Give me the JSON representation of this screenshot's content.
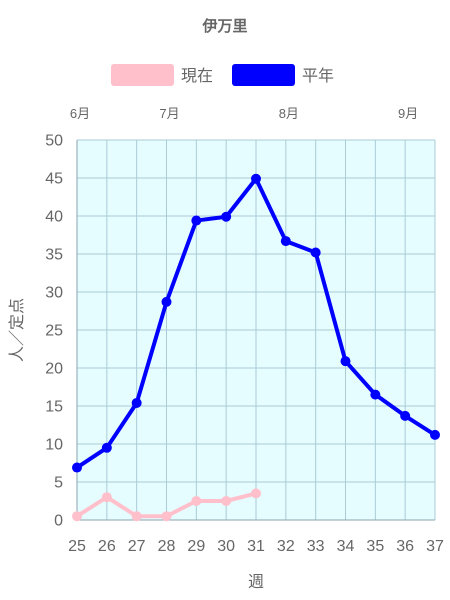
{
  "chart_data": {
    "type": "line",
    "title": "伊万里",
    "xlabel": "週",
    "ylabel": "人／定点",
    "x": [
      25,
      26,
      27,
      28,
      29,
      30,
      31,
      32,
      33,
      34,
      35,
      36,
      37
    ],
    "ylim": [
      0,
      50
    ],
    "yticks": [
      0,
      5,
      10,
      15,
      20,
      25,
      30,
      35,
      40,
      45,
      50
    ],
    "grid": true,
    "legend_position": "top",
    "plot_background": "#e6fdff",
    "month_labels": [
      {
        "label": "6月",
        "week": 25
      },
      {
        "label": "7月",
        "week": 28
      },
      {
        "label": "8月",
        "week": 32
      },
      {
        "label": "9月",
        "week": 36
      }
    ],
    "series": [
      {
        "name": "現在",
        "color": "#ffc0cb",
        "values": [
          0.5,
          3.0,
          0.5,
          0.5,
          2.5,
          2.5,
          3.5,
          null,
          null,
          null,
          null,
          null,
          null
        ]
      },
      {
        "name": "平年",
        "color": "#0000ff",
        "values": [
          6.9,
          9.5,
          15.4,
          28.7,
          39.4,
          39.9,
          44.9,
          36.7,
          35.2,
          20.9,
          16.5,
          13.7,
          11.2
        ]
      }
    ]
  }
}
